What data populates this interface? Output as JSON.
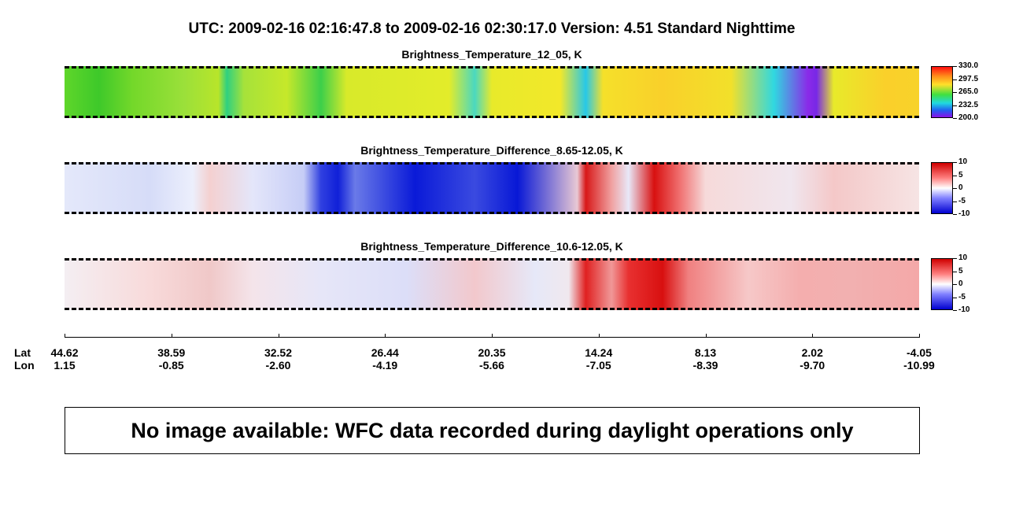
{
  "header": {
    "title": "UTC:  2009-02-16   02:16:47.8  to  2009-02-16   02:30:17.0    Version: 4.51  Standard Nighttime"
  },
  "panels": [
    {
      "title": "Brightness_Temperature_12_05, K",
      "colorbar_labels": [
        "330.0",
        "297.5",
        "265.0",
        "232.5",
        "200.0"
      ]
    },
    {
      "title": "Brightness_Temperature_Difference_8.65-12.05, K",
      "colorbar_labels": [
        "10",
        "5",
        "0",
        "-5",
        "-10"
      ]
    },
    {
      "title": "Brightness_Temperature_Difference_10.6-12.05, K",
      "colorbar_labels": [
        "10",
        "5",
        "0",
        "-5",
        "-10"
      ]
    }
  ],
  "axis": {
    "lat_label": "Lat",
    "lon_label": "Lon",
    "lat": [
      "44.62",
      "38.59",
      "32.52",
      "26.44",
      "20.35",
      "14.24",
      "8.13",
      "2.02",
      "-4.05"
    ],
    "lon": [
      "1.15",
      "-0.85",
      "-2.60",
      "-4.19",
      "-5.66",
      "-7.05",
      "-8.39",
      "-9.70",
      "-10.99"
    ]
  },
  "message": "No image available: WFC data recorded during daylight operations only"
}
